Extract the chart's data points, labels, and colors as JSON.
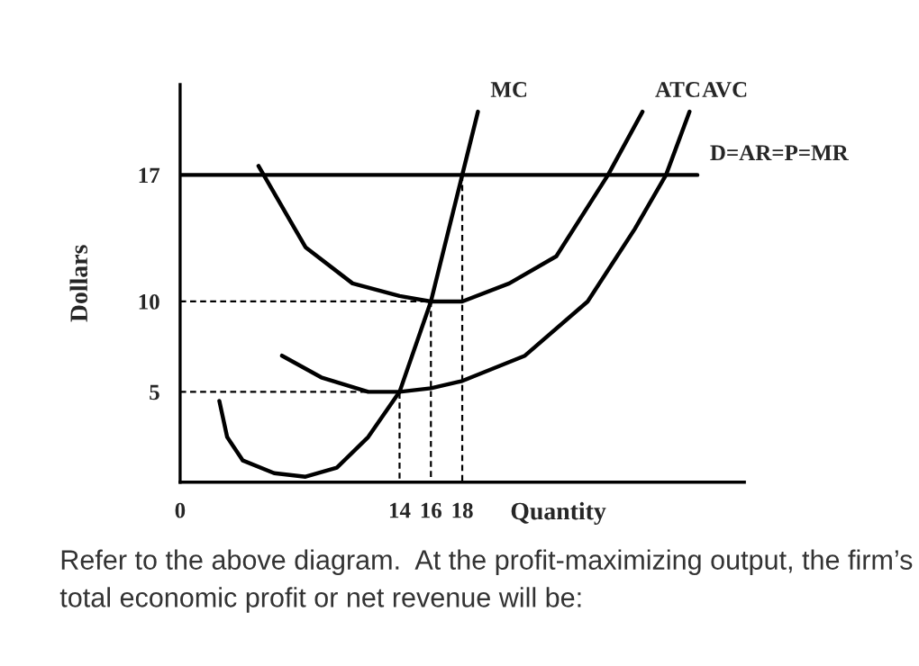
{
  "chart_data": {
    "type": "line",
    "ylabel": "Dollars",
    "xlabel": "Quantity",
    "xlim": [
      0,
      36
    ],
    "ylim": [
      0,
      22
    ],
    "xticks": [
      0,
      14,
      16,
      18
    ],
    "yticks": [
      5,
      10,
      17
    ],
    "grid": false,
    "legend": false,
    "marker": "none",
    "series": [
      {
        "name": "MC",
        "color": "#000000",
        "x": [
          2.5,
          3,
          4,
          6,
          8,
          10,
          12,
          14,
          16,
          18,
          19
        ],
        "values": [
          4.5,
          2.5,
          1.2,
          0.5,
          0.3,
          0.8,
          2.5,
          5,
          10,
          17,
          20.5
        ]
      },
      {
        "name": "ATC",
        "color": "#000000",
        "x": [
          5,
          8,
          11,
          14,
          16,
          18,
          21,
          24,
          27.3,
          29.5
        ],
        "values": [
          17.5,
          13,
          11,
          10.3,
          10,
          10,
          11,
          12.5,
          17,
          20.5
        ]
      },
      {
        "name": "AVC",
        "color": "#000000",
        "x": [
          6.5,
          9,
          12,
          14,
          16,
          18,
          22,
          26,
          29,
          31,
          32.5
        ],
        "values": [
          7,
          5.8,
          5,
          5,
          5.2,
          5.6,
          7,
          10,
          14,
          17,
          20.5
        ]
      },
      {
        "name": "D=AR=P=MR",
        "color": "#000000",
        "x": [
          0,
          33
        ],
        "values": [
          17,
          17
        ]
      },
      {
        "color": "#000000",
        "line_style": "dashed",
        "x": [
          0,
          16,
          16
        ],
        "values": [
          10,
          10,
          0
        ]
      },
      {
        "color": "#000000",
        "line_style": "dashed",
        "x": [
          0,
          14,
          14
        ],
        "values": [
          5,
          5,
          0
        ]
      },
      {
        "color": "#000000",
        "line_style": "dashed",
        "x": [
          18,
          18
        ],
        "values": [
          17,
          0
        ]
      }
    ],
    "annotations": [
      "Refer to the above diagram.  At the profit-maximizing output, the firm’s total economic profit or net revenue will be:"
    ]
  }
}
